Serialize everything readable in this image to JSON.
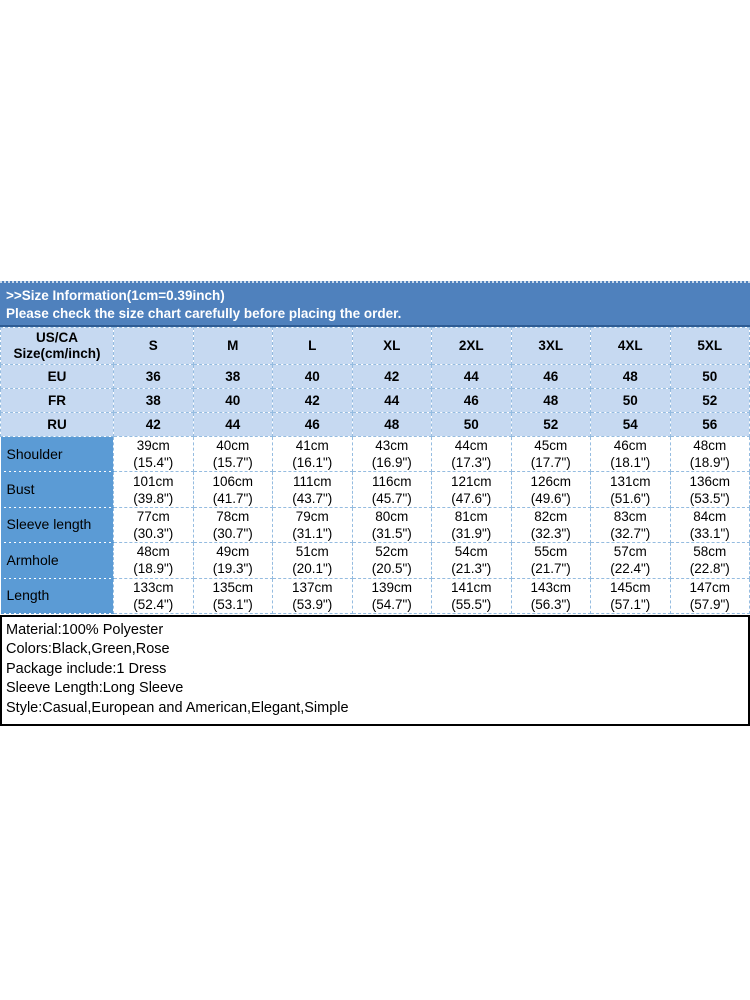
{
  "banner": {
    "line1": ">>Size Information(1cm=0.39inch)",
    "line2": "Please check the size chart carefully before placing the order."
  },
  "size_table": {
    "header": {
      "label_line1": "US/CA",
      "label_line2": "Size(cm/inch)"
    },
    "sizes": [
      "S",
      "M",
      "L",
      "XL",
      "2XL",
      "3XL",
      "4XL",
      "5XL"
    ],
    "regions": [
      {
        "label": "EU",
        "values": [
          "36",
          "38",
          "40",
          "42",
          "44",
          "46",
          "48",
          "50"
        ]
      },
      {
        "label": "FR",
        "values": [
          "38",
          "40",
          "42",
          "44",
          "46",
          "48",
          "50",
          "52"
        ]
      },
      {
        "label": "RU",
        "values": [
          "42",
          "44",
          "46",
          "48",
          "50",
          "52",
          "54",
          "56"
        ]
      }
    ],
    "measurements": [
      {
        "label": "Shoulder",
        "cm": [
          "39cm",
          "40cm",
          "41cm",
          "43cm",
          "44cm",
          "45cm",
          "46cm",
          "48cm"
        ],
        "inch": [
          "(15.4\")",
          "(15.7\")",
          "(16.1\")",
          "(16.9\")",
          "(17.3\")",
          "(17.7\")",
          "(18.1\")",
          "(18.9\")"
        ]
      },
      {
        "label": "Bust",
        "cm": [
          "101cm",
          "106cm",
          "111cm",
          "116cm",
          "121cm",
          "126cm",
          "131cm",
          "136cm"
        ],
        "inch": [
          "(39.8\")",
          "(41.7\")",
          "(43.7\")",
          "(45.7\")",
          "(47.6\")",
          "(49.6\")",
          "(51.6\")",
          "(53.5\")"
        ]
      },
      {
        "label": "Sleeve length",
        "cm": [
          "77cm",
          "78cm",
          "79cm",
          "80cm",
          "81cm",
          "82cm",
          "83cm",
          "84cm"
        ],
        "inch": [
          "(30.3\")",
          "(30.7\")",
          "(31.1\")",
          "(31.5\")",
          "(31.9\")",
          "(32.3\")",
          "(32.7\")",
          "(33.1\")"
        ]
      },
      {
        "label": "Armhole",
        "cm": [
          "48cm",
          "49cm",
          "51cm",
          "52cm",
          "54cm",
          "55cm",
          "57cm",
          "58cm"
        ],
        "inch": [
          "(18.9\")",
          "(19.3\")",
          "(20.1\")",
          "(20.5\")",
          "(21.3\")",
          "(21.7\")",
          "(22.4\")",
          "(22.8\")"
        ]
      },
      {
        "label": "Length",
        "cm": [
          "133cm",
          "135cm",
          "137cm",
          "139cm",
          "141cm",
          "143cm",
          "145cm",
          "147cm"
        ],
        "inch": [
          "(52.4\")",
          "(53.1\")",
          "(53.9\")",
          "(54.7\")",
          "(55.5\")",
          "(56.3\")",
          "(57.1\")",
          "(57.9\")"
        ]
      }
    ]
  },
  "product_info": {
    "lines": [
      "Material:100% Polyester",
      "Colors:Black,Green,Rose",
      "Package include:1 Dress",
      "Sleeve Length:Long Sleeve",
      "Style:Casual,European and American,Elegant,Simple"
    ]
  },
  "colors": {
    "banner_bg": "#4f81bd",
    "banner_text": "#ffffff",
    "banner_divider": "#2e5c94",
    "header_row_bg": "#c6d9f1",
    "label_column_bg": "#5b9bd5",
    "cell_border": "#95bce0",
    "info_border": "#000000",
    "text": "#000000"
  }
}
